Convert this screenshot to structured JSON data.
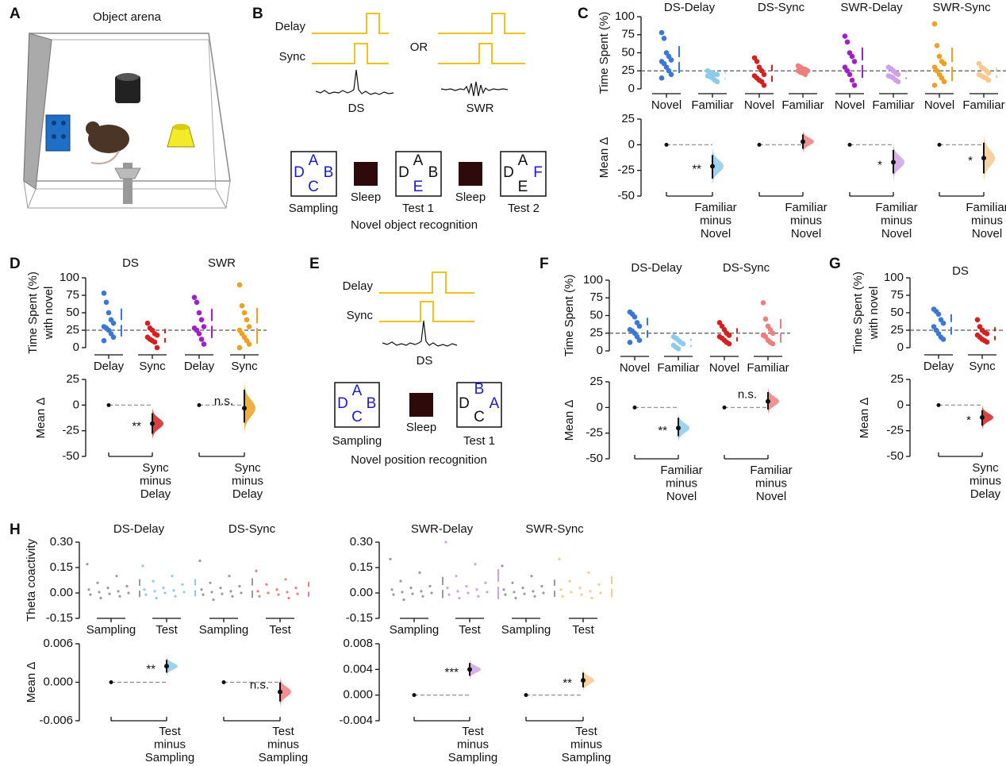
{
  "panel_labels": [
    "A",
    "B",
    "C",
    "D",
    "E",
    "F",
    "G",
    "H"
  ],
  "diagrams": {
    "arena_title": "Object arena",
    "object_task": {
      "signals": [
        "Delay",
        "Sync"
      ],
      "or": "OR",
      "events": [
        "DS",
        "SWR"
      ],
      "sessions": [
        {
          "label": "Sampling",
          "letters": [
            "A",
            "D",
            "B",
            "C"
          ]
        },
        {
          "label": "Sleep"
        },
        {
          "label": "Test 1",
          "letters": [
            "A",
            "D",
            "B",
            "E"
          ]
        },
        {
          "label": "Sleep"
        },
        {
          "label": "Test 2",
          "letters": [
            "A",
            "D",
            "F",
            "E"
          ]
        }
      ],
      "caption": "Novel object recognition"
    },
    "position_task": {
      "signals": [
        "Delay",
        "Sync"
      ],
      "event": "DS",
      "sessions": [
        {
          "label": "Sampling",
          "letters": [
            "A",
            "D",
            "B",
            "C"
          ]
        },
        {
          "label": "Sleep"
        },
        {
          "label": "Test 1",
          "letters": [
            "B",
            "D",
            "A",
            "C"
          ]
        }
      ],
      "caption": "Novel position recognition"
    }
  },
  "chart_data": [
    {
      "type": "estimation",
      "ylabel": [
        "Time Spent (%)"
      ],
      "ylim": [
        -5,
        105
      ],
      "yticks": [
        0,
        25,
        50,
        75,
        100
      ],
      "reference": 25,
      "delta_ylabel": [
        "Mean Δ"
      ],
      "delta_ylim": [
        -50,
        25
      ],
      "delta_yticks": [
        -50,
        -25,
        0,
        25
      ],
      "panels": [
        {
          "title": "DS-Delay",
          "series": [
            {
              "name": "Novel",
              "color": "#3a78d8",
              "values": [
                78,
                70,
                50,
                45,
                40,
                38,
                35,
                30,
                25,
                20,
                15
              ]
            },
            {
              "name": "Familiar",
              "color": "#8ccbeb",
              "values": [
                25,
                23,
                22,
                20,
                20,
                18,
                17,
                15,
                12,
                10
              ]
            }
          ],
          "delta": {
            "value": -21,
            "ci": [
              -33,
              -10
            ],
            "label": [
              "Familiar",
              "minus",
              "Novel"
            ],
            "significance": "**"
          }
        },
        {
          "title": "DS-Sync",
          "series": [
            {
              "name": "Novel",
              "color": "#d62020",
              "values": [
                43,
                38,
                30,
                25,
                20,
                18,
                15,
                12,
                10,
                5
              ]
            },
            {
              "name": "Familiar",
              "color": "#ee7f7f",
              "values": [
                32,
                30,
                28,
                27,
                25,
                25,
                23,
                22,
                20
              ]
            }
          ],
          "delta": {
            "value": 3,
            "ci": [
              -4,
              10
            ],
            "label": [
              "Familiar",
              "minus",
              "Novel"
            ]
          }
        },
        {
          "title": "SWR-Delay",
          "series": [
            {
              "name": "Novel",
              "color": "#a020c8",
              "values": [
                73,
                65,
                50,
                45,
                38,
                30,
                25,
                20,
                12,
                5
              ]
            },
            {
              "name": "Familiar",
              "color": "#cfa1e8",
              "values": [
                30,
                28,
                25,
                22,
                20,
                18,
                17,
                15,
                12,
                10
              ]
            }
          ],
          "delta": {
            "value": -17,
            "ci": [
              -28,
              -5
            ],
            "label": [
              "Familiar",
              "minus",
              "Novel"
            ],
            "significance": "*"
          }
        },
        {
          "title": "SWR-Sync",
          "series": [
            {
              "name": "Novel",
              "color": "#f0a020",
              "values": [
                90,
                60,
                45,
                38,
                35,
                30,
                25,
                20,
                15,
                10,
                5
              ]
            },
            {
              "name": "Familiar",
              "color": "#f8c890",
              "values": [
                35,
                30,
                28,
                25,
                22,
                20,
                18,
                16,
                15,
                12
              ]
            }
          ],
          "delta": {
            "value": -13,
            "ci": [
              -28,
              2
            ],
            "label": [
              "Familiar",
              "minus",
              "Novel"
            ],
            "significance": "*"
          }
        }
      ]
    },
    {
      "type": "estimation",
      "ylabel": [
        "Time Spent (%)",
        "with novel"
      ],
      "ylim": [
        -5,
        105
      ],
      "yticks": [
        0,
        25,
        50,
        75,
        100
      ],
      "reference": 25,
      "delta_ylabel": [
        "Mean Δ"
      ],
      "delta_ylim": [
        -50,
        25
      ],
      "delta_yticks": [
        -50,
        -25,
        0,
        25
      ],
      "panels": [
        {
          "title": "DS",
          "series": [
            {
              "name": "Delay",
              "color": "#3a78d8",
              "values": [
                78,
                65,
                50,
                40,
                35,
                30,
                28,
                25,
                20,
                15,
                10
              ]
            },
            {
              "name": "Sync",
              "color": "#d62020",
              "values": [
                35,
                28,
                25,
                20,
                18,
                15,
                12,
                10,
                8,
                0
              ]
            }
          ],
          "delta": {
            "value": -18,
            "ci": [
              -28,
              -8
            ],
            "label": [
              "Sync",
              "minus",
              "Delay"
            ],
            "significance": "**"
          }
        },
        {
          "title": "SWR",
          "series": [
            {
              "name": "Delay",
              "color": "#a020c8",
              "values": [
                72,
                65,
                50,
                40,
                30,
                28,
                25,
                20,
                12,
                5
              ]
            },
            {
              "name": "Sync",
              "color": "#f0a020",
              "values": [
                90,
                60,
                50,
                40,
                30,
                25,
                20,
                15,
                10,
                5,
                0
              ]
            }
          ],
          "delta": {
            "value": -3,
            "ci": [
              -17,
              15
            ],
            "label": [
              "Sync",
              "minus",
              "Delay"
            ],
            "significance": "n.s."
          }
        }
      ]
    },
    {
      "type": "estimation",
      "ylabel": [
        "Time Spent (%)"
      ],
      "ylim": [
        -5,
        105
      ],
      "yticks": [
        0,
        25,
        50,
        75,
        100
      ],
      "reference": 25,
      "delta_ylabel": [
        "Mean Δ"
      ],
      "delta_ylim": [
        -50,
        25
      ],
      "delta_yticks": [
        -50,
        -25,
        0,
        25
      ],
      "panels": [
        {
          "title": "DS-Delay",
          "series": [
            {
              "name": "Novel",
              "color": "#3a78d8",
              "values": [
                55,
                52,
                48,
                40,
                35,
                30,
                28,
                25,
                20,
                15,
                12
              ]
            },
            {
              "name": "Familiar",
              "color": "#8ccbeb",
              "values": [
                20,
                18,
                15,
                12,
                10,
                8,
                5,
                3
              ]
            }
          ],
          "delta": {
            "value": -20,
            "ci": [
              -28,
              -10
            ],
            "label": [
              "Familiar",
              "minus",
              "Novel"
            ],
            "significance": "**"
          }
        },
        {
          "title": "DS-Sync",
          "series": [
            {
              "name": "Novel",
              "color": "#d62020",
              "values": [
                40,
                35,
                30,
                25,
                22,
                20,
                18,
                15,
                12,
                10
              ]
            },
            {
              "name": "Familiar",
              "color": "#ee7f7f",
              "values": [
                68,
                45,
                35,
                30,
                25,
                22,
                20,
                15,
                12,
                10
              ]
            }
          ],
          "delta": {
            "value": 6,
            "ci": [
              -2,
              15
            ],
            "label": [
              "Familiar",
              "minus",
              "Novel"
            ],
            "significance": "n.s."
          }
        }
      ]
    },
    {
      "type": "estimation",
      "ylabel": [
        "Time Spent (%)",
        "with novel"
      ],
      "ylim": [
        -5,
        105
      ],
      "yticks": [
        0,
        25,
        50,
        75,
        100
      ],
      "reference": 25,
      "delta_ylabel": [
        "Mean Δ"
      ],
      "delta_ylim": [
        -50,
        25
      ],
      "delta_yticks": [
        -50,
        -25,
        0,
        25
      ],
      "panels": [
        {
          "title": "DS",
          "series": [
            {
              "name": "Delay",
              "color": "#3a78d8",
              "values": [
                55,
                52,
                48,
                40,
                35,
                30,
                25,
                20,
                15,
                12
              ]
            },
            {
              "name": "Sync",
              "color": "#d62020",
              "values": [
                40,
                30,
                25,
                22,
                20,
                18,
                15,
                12,
                10,
                8
              ]
            }
          ],
          "delta": {
            "value": -12,
            "ci": [
              -20,
              -5
            ],
            "label": [
              "Sync",
              "minus",
              "Delay"
            ],
            "significance": "*"
          }
        }
      ]
    },
    {
      "type": "estimation",
      "ylabel": [
        "Theta coactivity"
      ],
      "ylim": [
        -0.15,
        0.3
      ],
      "yticks": [
        {
          "value": -0.15,
          "label": "-0.15"
        },
        {
          "value": 0,
          "label": "0.00"
        },
        {
          "value": 0.15,
          "label": "0.15"
        },
        {
          "value": 0.3,
          "label": "0.30"
        }
      ],
      "delta_ylabel": [
        "Mean Δ"
      ],
      "delta_ylim": [
        -0.006,
        0.006
      ],
      "delta_yticks": [
        {
          "value": -0.006,
          "label": "-0.006"
        },
        {
          "value": 0,
          "label": "0.000"
        },
        {
          "value": 0.006,
          "label": "0.006"
        }
      ],
      "panels": [
        {
          "title": "DS-Delay",
          "series": [
            {
              "name": "Sampling",
              "color": "#9a9a9a",
              "values": [
                0.17,
                0.1,
                0.06,
                0.04,
                0.03,
                0.02,
                0.01,
                0.005,
                0,
                -0.005,
                -0.01,
                -0.02,
                -0.03
              ]
            },
            {
              "name": "Test",
              "color": "#8ccbeb",
              "values": [
                0.16,
                0.1,
                0.07,
                0.05,
                0.03,
                0.02,
                0.015,
                0.01,
                0.005,
                0,
                -0.01,
                -0.02,
                -0.03
              ]
            }
          ],
          "delta": {
            "value": 0.0025,
            "ci": [
              0.0015,
              0.0035
            ],
            "label": [
              "Test",
              "minus",
              "Sampling"
            ],
            "significance": "**"
          }
        },
        {
          "title": "DS-Sync",
          "series": [
            {
              "name": "Sampling",
              "color": "#9a9a9a",
              "values": [
                0.19,
                0.1,
                0.06,
                0.04,
                0.03,
                0.02,
                0.01,
                0.005,
                0,
                -0.005,
                -0.01,
                -0.02,
                -0.04
              ]
            },
            {
              "name": "Test",
              "color": "#ee7f7f",
              "values": [
                0.13,
                0.08,
                0.05,
                0.03,
                0.02,
                0.01,
                0.005,
                0,
                -0.005,
                -0.01,
                -0.02,
                -0.03
              ]
            }
          ],
          "delta": {
            "value": -0.0015,
            "ci": [
              -0.003,
              0
            ],
            "label": [
              "Test",
              "minus",
              "Sampling"
            ],
            "significance": "n.s."
          }
        }
      ]
    },
    {
      "type": "estimation",
      "ylim": [
        -0.15,
        0.3
      ],
      "yticks": [
        {
          "value": -0.15,
          "label": "-0.15"
        },
        {
          "value": 0,
          "label": "0.00"
        },
        {
          "value": 0.15,
          "label": "0.15"
        },
        {
          "value": 0.3,
          "label": "0.30"
        }
      ],
      "delta_ylim": [
        -0.004,
        0.008
      ],
      "delta_yticks": [
        {
          "value": -0.004,
          "label": "-0.004"
        },
        {
          "value": 0,
          "label": "0.000"
        },
        {
          "value": 0.004,
          "label": "0.004"
        },
        {
          "value": 0.008,
          "label": "0.008"
        }
      ],
      "panels": [
        {
          "title": "SWR-Delay",
          "series": [
            {
              "name": "Sampling",
              "color": "#9a9a9a",
              "values": [
                0.2,
                0.12,
                0.07,
                0.04,
                0.03,
                0.02,
                0.01,
                0.005,
                0,
                -0.005,
                -0.01,
                -0.02,
                -0.04
              ]
            },
            {
              "name": "Test",
              "color": "#cfa1e8",
              "values": [
                0.3,
                0.17,
                0.1,
                0.06,
                0.04,
                0.03,
                0.02,
                0.01,
                0.005,
                0,
                -0.01,
                -0.02,
                -0.03
              ]
            }
          ],
          "delta": {
            "value": 0.004,
            "ci": [
              0.003,
              0.005
            ],
            "label": [
              "Test",
              "minus",
              "Sampling"
            ],
            "significance": "***"
          }
        },
        {
          "title": "SWR-Sync",
          "series": [
            {
              "name": "Sampling",
              "color": "#9a9a9a",
              "values": [
                0.16,
                0.1,
                0.06,
                0.04,
                0.03,
                0.02,
                0.01,
                0.005,
                0,
                -0.005,
                -0.01,
                -0.02,
                -0.03
              ]
            },
            {
              "name": "Test",
              "color": "#f8c890",
              "values": [
                0.2,
                0.12,
                0.07,
                0.05,
                0.03,
                0.02,
                0.01,
                0.005,
                0,
                -0.01,
                -0.02,
                -0.03
              ]
            }
          ],
          "delta": {
            "value": 0.0023,
            "ci": [
              0.0012,
              0.0035
            ],
            "label": [
              "Test",
              "minus",
              "Sampling"
            ],
            "significance": "**"
          }
        }
      ]
    }
  ]
}
